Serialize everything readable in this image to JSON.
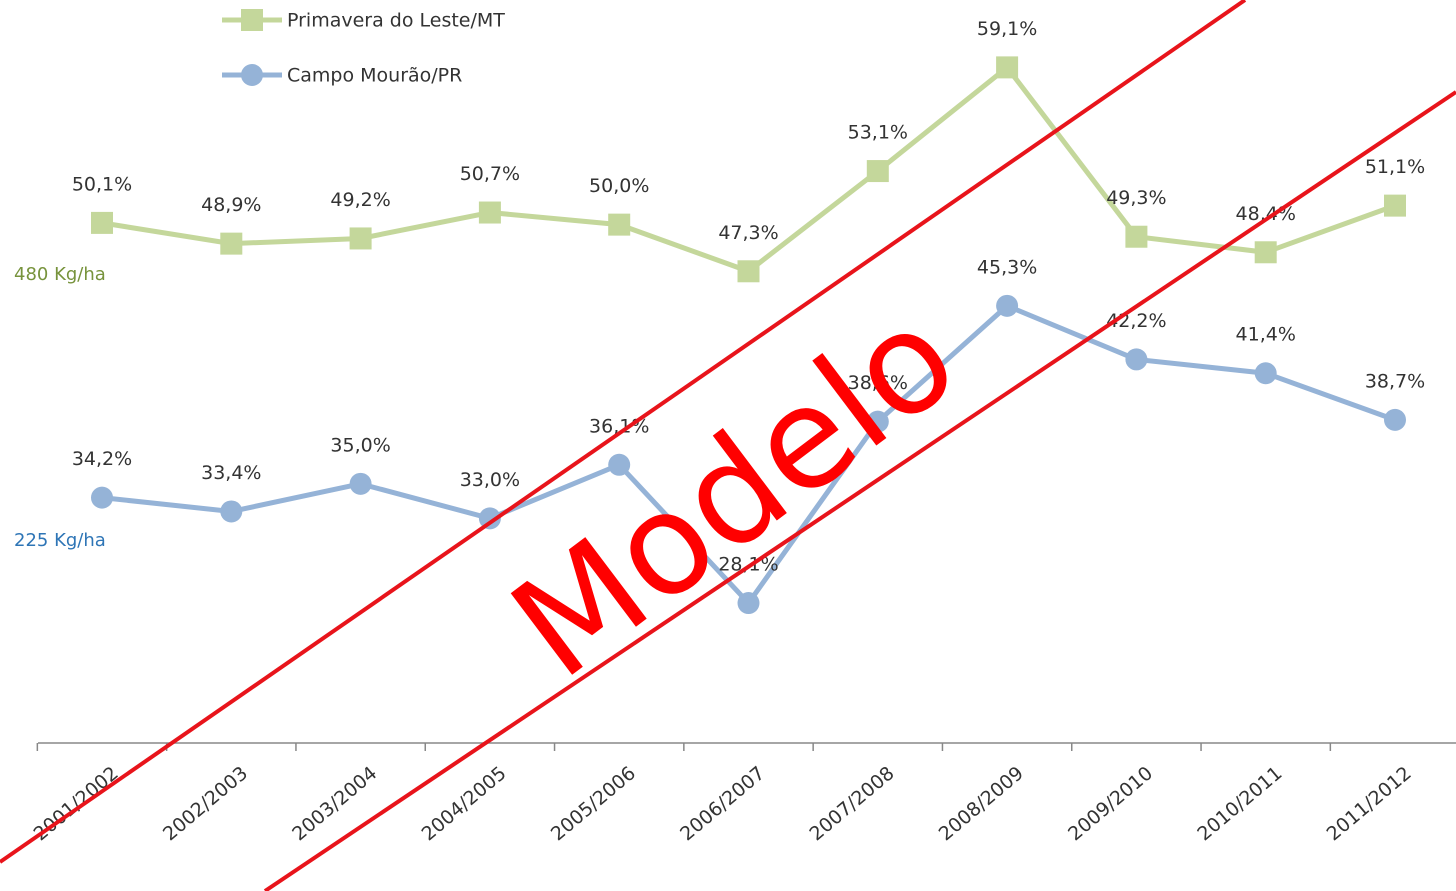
{
  "chart_data": {
    "type": "line",
    "categories": [
      "2001/2002",
      "2002/2003",
      "2003/2004",
      "2004/2005",
      "2005/2006",
      "2006/2007",
      "2007/2008",
      "2008/2009",
      "2009/2010",
      "2010/2011",
      "2011/2012"
    ],
    "series": [
      {
        "name": "Primavera do Leste/MT",
        "color": "#c4d79b",
        "marker": "square",
        "values": [
          50.1,
          48.9,
          49.2,
          50.7,
          50.0,
          47.3,
          53.1,
          59.1,
          49.3,
          48.4,
          51.1
        ],
        "value_labels": [
          "50,1%",
          "48,9%",
          "49,2%",
          "50,7%",
          "50,0%",
          "47,3%",
          "53,1%",
          "59,1%",
          "49,3%",
          "48,4%",
          "51,1%"
        ]
      },
      {
        "name": "Campo Mourão/PR",
        "color": "#95b3d7",
        "marker": "circle",
        "values": [
          34.2,
          33.4,
          35.0,
          33.0,
          36.1,
          28.1,
          38.6,
          45.3,
          42.2,
          41.4,
          38.7
        ],
        "value_labels": [
          "34,2%",
          "33,4%",
          "35,0%",
          "33,0%",
          "36,1%",
          "28,1%",
          "38,6%",
          "45,3%",
          "42,2%",
          "41,4%",
          "38,7%"
        ]
      }
    ],
    "ylim": [
      20,
      63
    ],
    "annotations": [
      {
        "text": "480 Kg/ha",
        "color": "#77933c"
      },
      {
        "text": "225 Kg/ha",
        "color": "#2e75b6"
      }
    ],
    "watermark": "Modelo"
  }
}
